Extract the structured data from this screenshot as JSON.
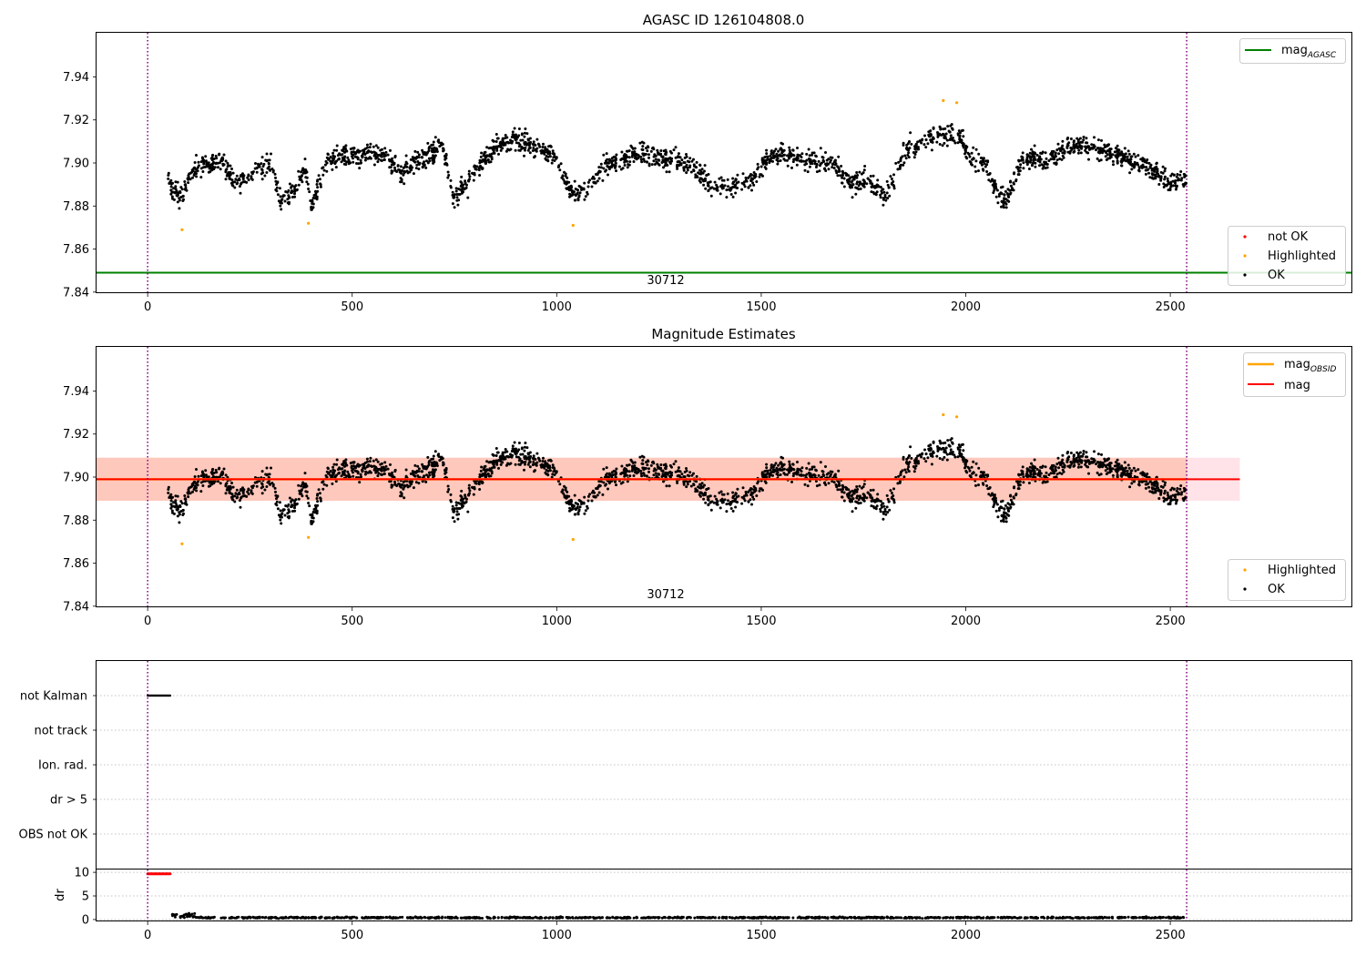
{
  "colors": {
    "ok": "#000000",
    "not_ok": "#ff0000",
    "highlighted": "#ffa500",
    "mag_agasc": "#008000",
    "mag_obsid": "#ffa500",
    "mag": "#ff0000",
    "obsid_band": "#ffa07a",
    "mag_band": "#ffc0cb",
    "vline": "#800080",
    "grid": "#b0b0b0"
  },
  "chart_data": [
    {
      "type": "scatter",
      "title": "AGASC ID 126104808.0",
      "xlim": [
        -125,
        2945
      ],
      "ylim": [
        7.8395,
        7.9605
      ],
      "x_ticks": [
        0,
        500,
        1000,
        1500,
        2000,
        2500
      ],
      "y_ticks": [
        7.84,
        7.86,
        7.88,
        7.9,
        7.92,
        7.94
      ],
      "vertical_lines": [
        0,
        2540
      ],
      "hlines": [
        {
          "name": "mag_AGASC",
          "y": 7.849,
          "x": [
            -125,
            2945
          ]
        }
      ],
      "series": [
        {
          "name": "not OK",
          "x": [],
          "y": []
        },
        {
          "name": "Highlighted",
          "x": [
            84,
            393,
            1040,
            1945,
            1978
          ],
          "y": [
            7.869,
            7.872,
            7.871,
            7.929,
            7.928
          ]
        },
        {
          "name": "OK",
          "x_range": [
            50,
            2540
          ],
          "count": 2450,
          "y_mean": 7.899,
          "y_spread": [
            7.874,
            7.926
          ]
        }
      ],
      "annotations": [
        {
          "text": "30712",
          "x": 1270,
          "y": 7.8415
        }
      ],
      "legends": [
        {
          "placement": "upper right",
          "entries": [
            "mag_AGASC"
          ]
        },
        {
          "placement": "lower right",
          "entries": [
            "not OK",
            "Highlighted",
            "OK"
          ]
        }
      ]
    },
    {
      "type": "scatter",
      "title": "Magnitude Estimates",
      "xlim": [
        -125,
        2945
      ],
      "ylim": [
        7.8395,
        7.9605
      ],
      "x_ticks": [
        0,
        500,
        1000,
        1500,
        2000,
        2500
      ],
      "y_ticks": [
        7.84,
        7.86,
        7.88,
        7.9,
        7.92,
        7.94
      ],
      "vertical_lines": [
        0,
        2540
      ],
      "hlines": [
        {
          "name": "mag_OBSID",
          "y": 7.899,
          "x": [
            -125,
            2540
          ]
        },
        {
          "name": "mag",
          "y": 7.899,
          "x": [
            -125,
            2670
          ]
        }
      ],
      "bands": [
        {
          "name": "mag_OBSID",
          "y": [
            7.889,
            7.909
          ],
          "x": [
            -125,
            2540
          ]
        },
        {
          "name": "mag",
          "y": [
            7.889,
            7.909
          ],
          "x": [
            -125,
            2670
          ]
        }
      ],
      "series": [
        {
          "name": "Highlighted",
          "x": [
            84,
            393,
            1040,
            1945,
            1978
          ],
          "y": [
            7.869,
            7.872,
            7.871,
            7.929,
            7.928
          ]
        },
        {
          "name": "OK",
          "x_range": [
            50,
            2540
          ],
          "count": 2450,
          "y_mean": 7.899,
          "y_spread": [
            7.874,
            7.926
          ]
        }
      ],
      "annotations": [
        {
          "text": "30712",
          "x": 1270,
          "y": 7.8415
        }
      ],
      "legends": [
        {
          "placement": "upper right",
          "entries": [
            "mag_OBSID",
            "mag"
          ]
        },
        {
          "placement": "lower right",
          "entries": [
            "Highlighted",
            "OK"
          ]
        }
      ]
    },
    {
      "type": "scatter",
      "title": "",
      "xlim": [
        -125,
        2945
      ],
      "categories": [
        "not Kalman",
        "not track",
        "Ion. rad.",
        "dr > 5",
        "OBS not OK"
      ],
      "vertical_lines": [
        0,
        2540
      ],
      "series": [
        {
          "name": "not Kalman",
          "x_range": [
            0,
            55
          ],
          "count": 28
        }
      ]
    },
    {
      "type": "scatter",
      "title": "",
      "xlim": [
        -125,
        2945
      ],
      "ylim": [
        -0.4,
        10.6
      ],
      "ylabel": "dr",
      "x_ticks": [
        0,
        500,
        1000,
        1500,
        2000,
        2500
      ],
      "y_ticks": [
        0,
        5,
        10
      ],
      "vertical_lines": [
        0,
        2540
      ],
      "series": [
        {
          "name": "not OK",
          "x_range": [
            0,
            55
          ],
          "y": 9.7,
          "count": 28
        },
        {
          "name": "OK",
          "x_range": [
            60,
            2540
          ],
          "count": 1100,
          "y_mean": 0.4,
          "y_spread": [
            0.1,
            1.4
          ]
        }
      ]
    }
  ],
  "legend_labels": {
    "mag_base": "mag",
    "agasc_sub": "AGASC",
    "obsid_sub": "OBSID",
    "mag": "mag",
    "not_ok": "not OK",
    "highlighted": "Highlighted",
    "ok": "OK"
  }
}
